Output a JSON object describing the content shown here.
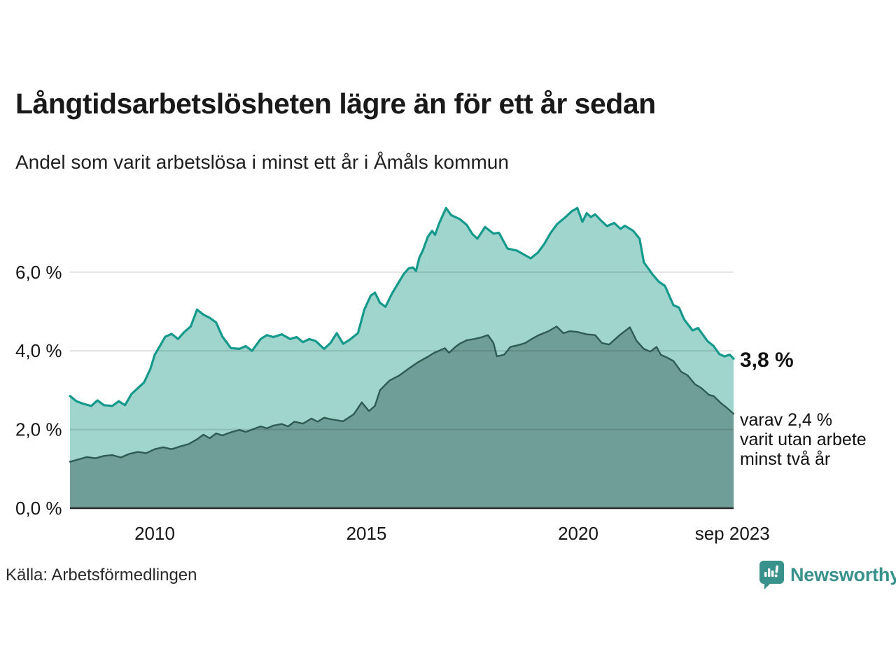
{
  "header": {
    "title": "Långtidsarbetslösheten lägre än för ett år sedan",
    "subtitle": "Andel som varit arbetslösa i minst ett år i Åmåls kommun"
  },
  "annotations": {
    "end_value_label": "3,8 %",
    "end_value_sublabel": "varav 2,4 %\nvarit utan arbete\nminst två år"
  },
  "footer": {
    "source": "Källa: Arbetsförmedlingen",
    "brand": "Newsworthy"
  },
  "colors": {
    "light_fill": "#9fd5cd",
    "light_line": "#14998b",
    "dark_fill": "#6f9d97",
    "dark_line": "#2e5b54",
    "grid": "rgba(0,0,0,0.12)",
    "axis": "#2a2a2a",
    "tick_text": "#161616",
    "brand_teal": "#38918a"
  },
  "chart_data": {
    "type": "area",
    "title": "Långtidsarbetslösheten lägre än för ett år sedan",
    "subtitle": "Andel som varit arbetslösa i minst ett år i Åmåls kommun",
    "xlabel": "",
    "ylabel": "",
    "xlim": [
      2008.0,
      2023.67
    ],
    "ylim": [
      0,
      7.8
    ],
    "grid": true,
    "y_ticks": [
      {
        "value": 6,
        "label": "6,0 %"
      },
      {
        "value": 4,
        "label": "4,0 %"
      },
      {
        "value": 2,
        "label": "2,0 %"
      },
      {
        "value": 0,
        "label": "0,0 %"
      }
    ],
    "x_ticks": [
      {
        "t": 2010.0,
        "label": "2010"
      },
      {
        "t": 2015.0,
        "label": "2015"
      },
      {
        "t": 2020.0,
        "label": "2020"
      },
      {
        "t": 2023.64,
        "label": "sep 2023"
      }
    ],
    "series": [
      {
        "name": "arbetslösa minst ett år",
        "end_value": "3,8 %",
        "points": [
          [
            2008.0,
            2.85
          ],
          [
            2008.15,
            2.72
          ],
          [
            2008.3,
            2.66
          ],
          [
            2008.5,
            2.6
          ],
          [
            2008.65,
            2.74
          ],
          [
            2008.8,
            2.62
          ],
          [
            2009.0,
            2.6
          ],
          [
            2009.15,
            2.72
          ],
          [
            2009.3,
            2.62
          ],
          [
            2009.45,
            2.9
          ],
          [
            2009.6,
            3.05
          ],
          [
            2009.75,
            3.2
          ],
          [
            2009.9,
            3.55
          ],
          [
            2010.0,
            3.9
          ],
          [
            2010.1,
            4.08
          ],
          [
            2010.25,
            4.36
          ],
          [
            2010.4,
            4.43
          ],
          [
            2010.55,
            4.3
          ],
          [
            2010.7,
            4.48
          ],
          [
            2010.85,
            4.62
          ],
          [
            2011.0,
            5.05
          ],
          [
            2011.15,
            4.92
          ],
          [
            2011.3,
            4.84
          ],
          [
            2011.45,
            4.72
          ],
          [
            2011.6,
            4.36
          ],
          [
            2011.8,
            4.07
          ],
          [
            2012.0,
            4.05
          ],
          [
            2012.15,
            4.12
          ],
          [
            2012.3,
            4.0
          ],
          [
            2012.5,
            4.3
          ],
          [
            2012.65,
            4.4
          ],
          [
            2012.8,
            4.35
          ],
          [
            2013.0,
            4.42
          ],
          [
            2013.2,
            4.3
          ],
          [
            2013.35,
            4.35
          ],
          [
            2013.5,
            4.22
          ],
          [
            2013.65,
            4.3
          ],
          [
            2013.8,
            4.25
          ],
          [
            2014.0,
            4.05
          ],
          [
            2014.15,
            4.2
          ],
          [
            2014.3,
            4.45
          ],
          [
            2014.45,
            4.18
          ],
          [
            2014.6,
            4.28
          ],
          [
            2014.8,
            4.45
          ],
          [
            2014.95,
            5.05
          ],
          [
            2015.1,
            5.4
          ],
          [
            2015.2,
            5.48
          ],
          [
            2015.32,
            5.22
          ],
          [
            2015.45,
            5.12
          ],
          [
            2015.6,
            5.45
          ],
          [
            2015.75,
            5.72
          ],
          [
            2015.88,
            5.95
          ],
          [
            2016.0,
            6.1
          ],
          [
            2016.1,
            6.12
          ],
          [
            2016.17,
            6.03
          ],
          [
            2016.25,
            6.37
          ],
          [
            2016.33,
            6.55
          ],
          [
            2016.45,
            6.9
          ],
          [
            2016.55,
            7.05
          ],
          [
            2016.62,
            6.95
          ],
          [
            2016.72,
            7.25
          ],
          [
            2016.88,
            7.63
          ],
          [
            2017.0,
            7.45
          ],
          [
            2017.2,
            7.35
          ],
          [
            2017.37,
            7.2
          ],
          [
            2017.5,
            6.97
          ],
          [
            2017.62,
            6.85
          ],
          [
            2017.8,
            7.15
          ],
          [
            2018.0,
            6.98
          ],
          [
            2018.13,
            7.0
          ],
          [
            2018.33,
            6.6
          ],
          [
            2018.55,
            6.55
          ],
          [
            2018.88,
            6.35
          ],
          [
            2019.05,
            6.5
          ],
          [
            2019.2,
            6.72
          ],
          [
            2019.35,
            7.0
          ],
          [
            2019.5,
            7.22
          ],
          [
            2019.7,
            7.4
          ],
          [
            2019.85,
            7.55
          ],
          [
            2019.98,
            7.63
          ],
          [
            2020.1,
            7.28
          ],
          [
            2020.2,
            7.5
          ],
          [
            2020.3,
            7.4
          ],
          [
            2020.4,
            7.47
          ],
          [
            2020.55,
            7.3
          ],
          [
            2020.68,
            7.17
          ],
          [
            2020.85,
            7.25
          ],
          [
            2021.0,
            7.1
          ],
          [
            2021.1,
            7.18
          ],
          [
            2021.3,
            7.05
          ],
          [
            2021.45,
            6.85
          ],
          [
            2021.55,
            6.25
          ],
          [
            2021.75,
            5.95
          ],
          [
            2021.9,
            5.76
          ],
          [
            2022.05,
            5.65
          ],
          [
            2022.15,
            5.4
          ],
          [
            2022.25,
            5.16
          ],
          [
            2022.38,
            5.1
          ],
          [
            2022.5,
            4.8
          ],
          [
            2022.6,
            4.66
          ],
          [
            2022.7,
            4.52
          ],
          [
            2022.83,
            4.58
          ],
          [
            2022.95,
            4.4
          ],
          [
            2023.05,
            4.25
          ],
          [
            2023.2,
            4.12
          ],
          [
            2023.33,
            3.92
          ],
          [
            2023.45,
            3.86
          ],
          [
            2023.58,
            3.9
          ],
          [
            2023.67,
            3.8
          ]
        ]
      },
      {
        "name": "varit utan arbete minst två år",
        "end_value": "2,4 %",
        "points": [
          [
            2008.0,
            1.18
          ],
          [
            2008.2,
            1.24
          ],
          [
            2008.4,
            1.3
          ],
          [
            2008.6,
            1.27
          ],
          [
            2008.8,
            1.33
          ],
          [
            2009.0,
            1.35
          ],
          [
            2009.2,
            1.29
          ],
          [
            2009.4,
            1.38
          ],
          [
            2009.6,
            1.43
          ],
          [
            2009.8,
            1.4
          ],
          [
            2010.0,
            1.5
          ],
          [
            2010.2,
            1.55
          ],
          [
            2010.4,
            1.5
          ],
          [
            2010.6,
            1.57
          ],
          [
            2010.8,
            1.63
          ],
          [
            2011.0,
            1.75
          ],
          [
            2011.15,
            1.87
          ],
          [
            2011.3,
            1.78
          ],
          [
            2011.45,
            1.9
          ],
          [
            2011.6,
            1.85
          ],
          [
            2011.8,
            1.93
          ],
          [
            2012.0,
            1.99
          ],
          [
            2012.15,
            1.94
          ],
          [
            2012.3,
            2.0
          ],
          [
            2012.5,
            2.08
          ],
          [
            2012.65,
            2.03
          ],
          [
            2012.8,
            2.1
          ],
          [
            2013.0,
            2.14
          ],
          [
            2013.15,
            2.08
          ],
          [
            2013.3,
            2.2
          ],
          [
            2013.5,
            2.15
          ],
          [
            2013.7,
            2.28
          ],
          [
            2013.85,
            2.2
          ],
          [
            2014.0,
            2.3
          ],
          [
            2014.17,
            2.26
          ],
          [
            2014.45,
            2.21
          ],
          [
            2014.7,
            2.39
          ],
          [
            2014.89,
            2.69
          ],
          [
            2015.06,
            2.47
          ],
          [
            2015.2,
            2.6
          ],
          [
            2015.32,
            3.0
          ],
          [
            2015.55,
            3.25
          ],
          [
            2015.77,
            3.37
          ],
          [
            2016.0,
            3.55
          ],
          [
            2016.2,
            3.7
          ],
          [
            2016.45,
            3.85
          ],
          [
            2016.6,
            3.95
          ],
          [
            2016.71,
            4.0
          ],
          [
            2016.85,
            4.07
          ],
          [
            2016.95,
            3.95
          ],
          [
            2017.1,
            4.1
          ],
          [
            2017.2,
            4.18
          ],
          [
            2017.37,
            4.27
          ],
          [
            2017.54,
            4.3
          ],
          [
            2017.7,
            4.34
          ],
          [
            2017.87,
            4.4
          ],
          [
            2018.0,
            4.2
          ],
          [
            2018.08,
            3.86
          ],
          [
            2018.25,
            3.9
          ],
          [
            2018.4,
            4.1
          ],
          [
            2018.6,
            4.15
          ],
          [
            2018.75,
            4.2
          ],
          [
            2018.9,
            4.3
          ],
          [
            2019.07,
            4.4
          ],
          [
            2019.3,
            4.5
          ],
          [
            2019.49,
            4.62
          ],
          [
            2019.65,
            4.45
          ],
          [
            2019.8,
            4.5
          ],
          [
            2019.98,
            4.48
          ],
          [
            2020.2,
            4.42
          ],
          [
            2020.4,
            4.4
          ],
          [
            2020.56,
            4.2
          ],
          [
            2020.73,
            4.16
          ],
          [
            2020.98,
            4.4
          ],
          [
            2021.22,
            4.6
          ],
          [
            2021.38,
            4.25
          ],
          [
            2021.55,
            4.05
          ],
          [
            2021.7,
            3.98
          ],
          [
            2021.85,
            4.1
          ],
          [
            2021.95,
            3.9
          ],
          [
            2022.1,
            3.83
          ],
          [
            2022.25,
            3.74
          ],
          [
            2022.43,
            3.47
          ],
          [
            2022.58,
            3.38
          ],
          [
            2022.76,
            3.15
          ],
          [
            2022.9,
            3.06
          ],
          [
            2023.09,
            2.88
          ],
          [
            2023.2,
            2.85
          ],
          [
            2023.37,
            2.67
          ],
          [
            2023.5,
            2.56
          ],
          [
            2023.67,
            2.4
          ]
        ]
      }
    ]
  }
}
